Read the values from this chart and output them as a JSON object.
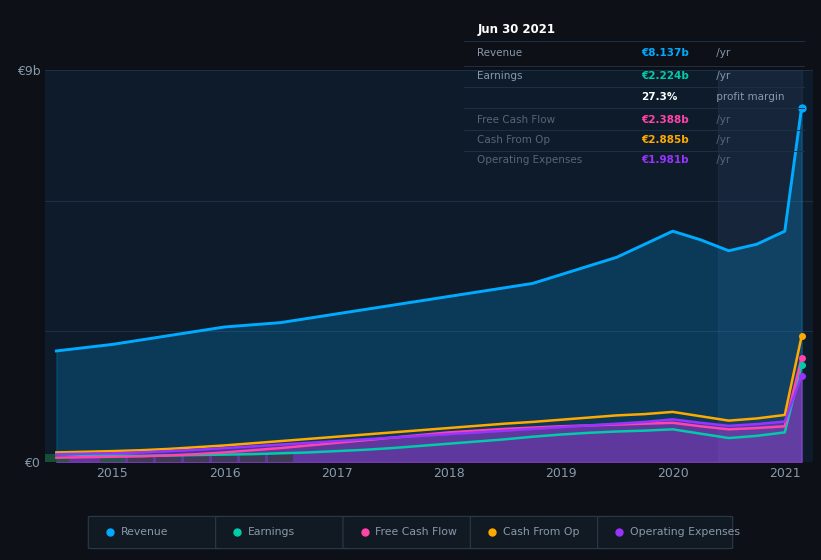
{
  "bg_color": "#0d1117",
  "plot_bg_color": "#0d1b2a",
  "title": "Jun 30 2021",
  "years": [
    2014.5,
    2015.0,
    2015.25,
    2015.5,
    2015.75,
    2016.0,
    2016.25,
    2016.5,
    2016.75,
    2017.0,
    2017.25,
    2017.5,
    2017.75,
    2018.0,
    2018.25,
    2018.5,
    2018.75,
    2019.0,
    2019.25,
    2019.5,
    2019.75,
    2020.0,
    2020.25,
    2020.5,
    2020.75,
    2021.0,
    2021.15
  ],
  "revenue": [
    2.55,
    2.7,
    2.8,
    2.9,
    3.0,
    3.1,
    3.15,
    3.2,
    3.3,
    3.4,
    3.5,
    3.6,
    3.7,
    3.8,
    3.9,
    4.0,
    4.1,
    4.3,
    4.5,
    4.7,
    5.0,
    5.3,
    5.1,
    4.85,
    5.0,
    5.3,
    8.137
  ],
  "earnings": [
    0.18,
    0.15,
    0.14,
    0.15,
    0.16,
    0.17,
    0.18,
    0.2,
    0.22,
    0.25,
    0.28,
    0.32,
    0.37,
    0.42,
    0.47,
    0.52,
    0.58,
    0.63,
    0.67,
    0.7,
    0.72,
    0.75,
    0.65,
    0.55,
    0.6,
    0.68,
    2.224
  ],
  "free_cash_flow": [
    0.1,
    0.12,
    0.13,
    0.15,
    0.18,
    0.22,
    0.27,
    0.32,
    0.38,
    0.44,
    0.5,
    0.56,
    0.62,
    0.68,
    0.72,
    0.76,
    0.79,
    0.82,
    0.84,
    0.86,
    0.88,
    0.9,
    0.82,
    0.75,
    0.78,
    0.82,
    2.388
  ],
  "cash_from_op": [
    0.22,
    0.25,
    0.27,
    0.3,
    0.34,
    0.38,
    0.43,
    0.48,
    0.53,
    0.58,
    0.63,
    0.68,
    0.73,
    0.78,
    0.83,
    0.88,
    0.92,
    0.97,
    1.02,
    1.07,
    1.1,
    1.15,
    1.05,
    0.95,
    1.0,
    1.08,
    2.885
  ],
  "operating_expenses": [
    0.18,
    0.2,
    0.22,
    0.25,
    0.28,
    0.32,
    0.36,
    0.4,
    0.44,
    0.48,
    0.52,
    0.56,
    0.6,
    0.64,
    0.68,
    0.72,
    0.76,
    0.8,
    0.84,
    0.88,
    0.92,
    0.98,
    0.9,
    0.83,
    0.87,
    0.93,
    1.981
  ],
  "colors": {
    "revenue": "#00aaff",
    "earnings": "#00ccaa",
    "free_cash_flow": "#ff44aa",
    "cash_from_op": "#ffaa00",
    "operating_expenses": "#9933ff"
  },
  "earnings_bar_color_green": "#1a5c3a",
  "earnings_bar_color_grey": "#3a3a4a",
  "shade_start": 2020.4,
  "shade_end": 2021.15,
  "shade_color": "#334466",
  "ylim": [
    0,
    9
  ],
  "xlim": [
    2014.4,
    2021.25
  ],
  "ytick_positions": [
    0,
    3,
    6,
    9
  ],
  "ytick_labels": [
    "€0",
    "",
    "",
    "€9b"
  ],
  "xticks": [
    2015,
    2016,
    2017,
    2018,
    2019,
    2020,
    2021
  ],
  "grid_color": "#1e3045",
  "text_color": "#8899aa",
  "tooltip": {
    "title": "Jun 30 2021",
    "rows": [
      {
        "label": "Revenue",
        "value": "€8.137b",
        "suffix": " /yr",
        "value_color": "#00aaff",
        "dimmed": false
      },
      {
        "label": "Earnings",
        "value": "€2.224b",
        "suffix": " /yr",
        "value_color": "#00ccaa",
        "dimmed": false
      },
      {
        "label": "",
        "value": "27.3%",
        "suffix": " profit margin",
        "value_color": "#ffffff",
        "dimmed": false
      },
      {
        "label": "Free Cash Flow",
        "value": "€2.388b",
        "suffix": " /yr",
        "value_color": "#ff44aa",
        "dimmed": true
      },
      {
        "label": "Cash From Op",
        "value": "€2.885b",
        "suffix": " /yr",
        "value_color": "#ffaa00",
        "dimmed": true
      },
      {
        "label": "Operating Expenses",
        "value": "€1.981b",
        "suffix": " /yr",
        "value_color": "#9933ff",
        "dimmed": true
      }
    ]
  },
  "legend_items": [
    {
      "label": "Revenue",
      "color": "#00aaff"
    },
    {
      "label": "Earnings",
      "color": "#00ccaa"
    },
    {
      "label": "Free Cash Flow",
      "color": "#ff44aa"
    },
    {
      "label": "Cash From Op",
      "color": "#ffaa00"
    },
    {
      "label": "Operating Expenses",
      "color": "#9933ff"
    }
  ]
}
